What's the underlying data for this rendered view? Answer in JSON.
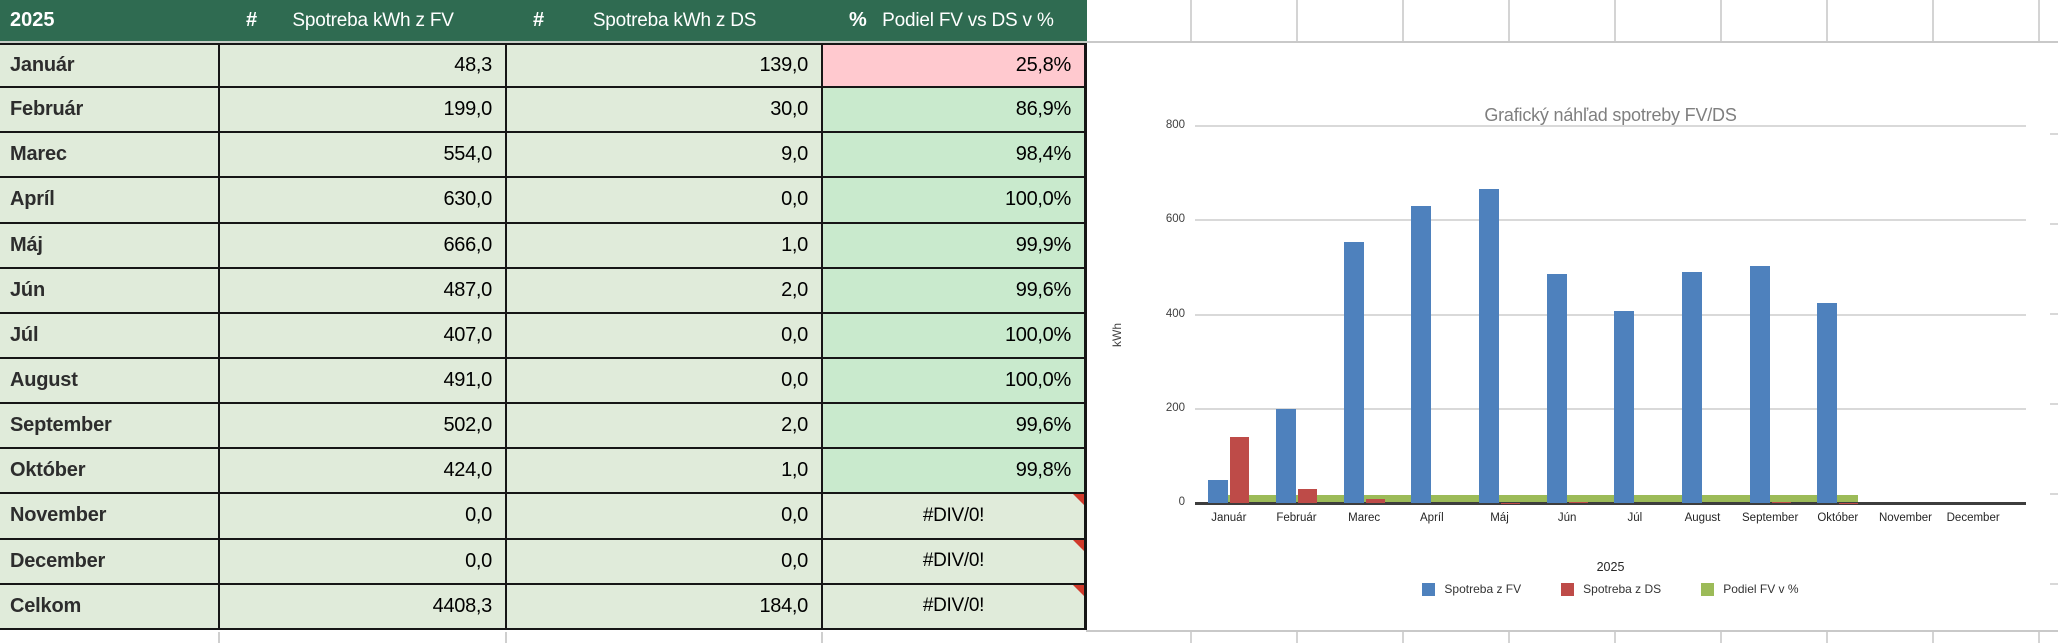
{
  "table": {
    "year": "2025",
    "columns": [
      {
        "symbol": "#",
        "label": "Spotreba kWh z FV"
      },
      {
        "symbol": "#",
        "label": "Spotreba kWh z DS"
      },
      {
        "symbol": "%",
        "label": "Podiel FV vs DS v %"
      }
    ],
    "rows": [
      {
        "month": "Január",
        "fv": "48,3",
        "ds": "139,0",
        "podiel": "25,8%",
        "podiel_style": "pink",
        "error_flag": false
      },
      {
        "month": "Február",
        "fv": "199,0",
        "ds": "30,0",
        "podiel": "86,9%",
        "podiel_style": "mint",
        "error_flag": false
      },
      {
        "month": "Marec",
        "fv": "554,0",
        "ds": "9,0",
        "podiel": "98,4%",
        "podiel_style": "mint",
        "error_flag": false
      },
      {
        "month": "Apríl",
        "fv": "630,0",
        "ds": "0,0",
        "podiel": "100,0%",
        "podiel_style": "mint",
        "error_flag": false
      },
      {
        "month": "Máj",
        "fv": "666,0",
        "ds": "1,0",
        "podiel": "99,9%",
        "podiel_style": "mint",
        "error_flag": false
      },
      {
        "month": "Jún",
        "fv": "487,0",
        "ds": "2,0",
        "podiel": "99,6%",
        "podiel_style": "mint",
        "error_flag": false
      },
      {
        "month": "Júl",
        "fv": "407,0",
        "ds": "0,0",
        "podiel": "100,0%",
        "podiel_style": "mint",
        "error_flag": false
      },
      {
        "month": "August",
        "fv": "491,0",
        "ds": "0,0",
        "podiel": "100,0%",
        "podiel_style": "mint",
        "error_flag": false
      },
      {
        "month": "September",
        "fv": "502,0",
        "ds": "2,0",
        "podiel": "99,6%",
        "podiel_style": "mint",
        "error_flag": false
      },
      {
        "month": "Október",
        "fv": "424,0",
        "ds": "1,0",
        "podiel": "99,8%",
        "podiel_style": "mint",
        "error_flag": false
      },
      {
        "month": "November",
        "fv": "0,0",
        "ds": "0,0",
        "podiel": "#DIV/0!",
        "podiel_style": "error",
        "error_flag": true
      },
      {
        "month": "December",
        "fv": "0,0",
        "ds": "0,0",
        "podiel": "#DIV/0!",
        "podiel_style": "error",
        "error_flag": true
      },
      {
        "month": "Celkom",
        "fv": "4408,3",
        "ds": "184,0",
        "podiel": "#DIV/0!",
        "podiel_style": "error",
        "error_flag": true
      }
    ],
    "colors": {
      "header_bg": "#2f6b51",
      "cell_bg": "#e0ebda",
      "good_bg": "#c9eacd",
      "bad_bg": "#ffc9cf",
      "error_marker": "#d03a2b"
    }
  },
  "chart_data": {
    "type": "bar",
    "title": "Grafický náhľad spotreby FV/DS",
    "xlabel": "2025",
    "ylabel": "kWh",
    "ylim": [
      0,
      800
    ],
    "yticks": [
      0,
      200,
      400,
      600,
      800
    ],
    "grid": true,
    "legend_position": "bottom",
    "categories": [
      "Január",
      "Február",
      "Marec",
      "Apríl",
      "Máj",
      "Jún",
      "Júl",
      "August",
      "September",
      "Október",
      "November",
      "December"
    ],
    "series": [
      {
        "name": "Spotreba z FV",
        "color": "#4e81bd",
        "values": [
          48.3,
          199,
          554,
          630,
          666,
          487,
          407,
          491,
          502,
          424,
          0,
          0
        ]
      },
      {
        "name": "Spotreba z DS",
        "color": "#be4b48",
        "values": [
          139,
          30,
          9,
          0,
          1,
          2,
          0,
          0,
          2,
          1,
          0,
          0
        ]
      },
      {
        "name": "Podiel FV v  %",
        "color": "#9cbb58",
        "render": "strip",
        "values": [
          25.8,
          86.9,
          98.4,
          100.0,
          99.9,
          99.6,
          100.0,
          100.0,
          99.6,
          99.8,
          null,
          null
        ]
      }
    ]
  }
}
